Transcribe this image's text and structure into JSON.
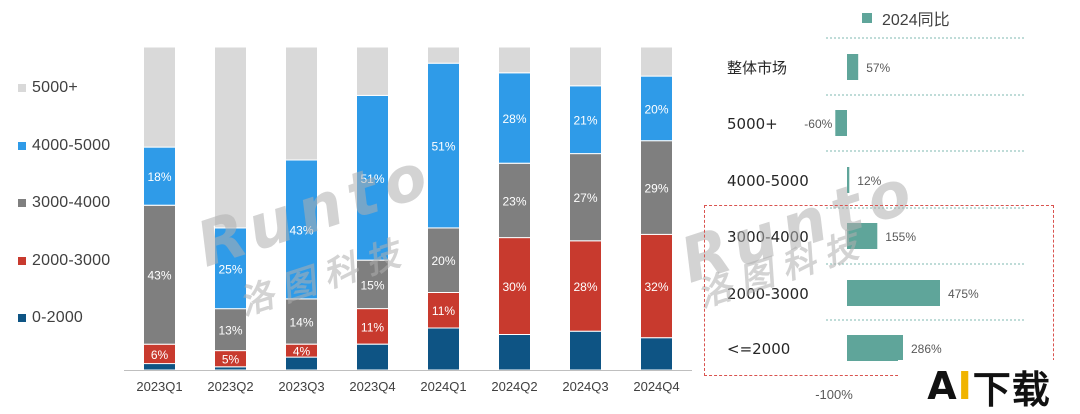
{
  "chart_data": [
    {
      "type": "bar",
      "stacked": true,
      "categories": [
        "2023Q1",
        "2023Q2",
        "2023Q3",
        "2023Q4",
        "2024Q1",
        "2024Q2",
        "2024Q3",
        "2024Q4"
      ],
      "series": [
        {
          "name": "0-2000",
          "color": "#0e5484",
          "values": [
            0.02,
            0.01,
            0.04,
            0.08,
            0.13,
            0.11,
            0.12,
            0.1
          ]
        },
        {
          "name": "2000-3000",
          "color": "#c83a2e",
          "values": [
            0.06,
            0.05,
            0.04,
            0.11,
            0.11,
            0.3,
            0.28,
            0.32
          ]
        },
        {
          "name": "3000-4000",
          "color": "#7f7f7f",
          "values": [
            0.43,
            0.13,
            0.14,
            0.15,
            0.2,
            0.23,
            0.27,
            0.29
          ]
        },
        {
          "name": "4000-5000",
          "color": "#2f9be8",
          "values": [
            0.18,
            0.25,
            0.43,
            0.51,
            0.51,
            0.28,
            0.21,
            0.2
          ]
        },
        {
          "name": "5000+",
          "color": "#d9d9d9",
          "values": [
            0.31,
            0.56,
            0.35,
            0.15,
            0.05,
            0.08,
            0.12,
            0.09
          ]
        }
      ],
      "data_labels": [
        [
          "",
          "6%",
          "43%",
          "18%",
          ""
        ],
        [
          "",
          "5%",
          "13%",
          "25%",
          ""
        ],
        [
          "",
          "4%",
          "14%",
          "43%",
          ""
        ],
        [
          "",
          "11%",
          "15%",
          "51%",
          ""
        ],
        [
          "",
          "11%",
          "20%",
          "51%",
          ""
        ],
        [
          "",
          "30%",
          "23%",
          "28%",
          ""
        ],
        [
          "",
          "28%",
          "27%",
          "21%",
          ""
        ],
        [
          "",
          "32%",
          "29%",
          "20%",
          ""
        ]
      ],
      "legend": [
        "5000+",
        "4000-5000",
        "3000-4000",
        "2000-3000",
        "0-2000"
      ],
      "legend_position": "left",
      "ylim": [
        0,
        1
      ],
      "grid": false
    },
    {
      "type": "bar",
      "orientation": "horizontal",
      "series_name": "2024同比",
      "color": "#5fa59a",
      "categories": [
        "整体市场",
        "5000+",
        "4000-5000",
        "3000-4000",
        "2000-3000",
        "<=2000"
      ],
      "values": [
        57,
        -60,
        12,
        155,
        475,
        286
      ],
      "value_labels": [
        "57%",
        "-60%",
        "12%",
        "155%",
        "475%",
        "286%"
      ],
      "axis_tick_label": "-100%",
      "xlim": [
        -100,
        600
      ],
      "grid": true,
      "grid_style": "dashed"
    }
  ],
  "watermark": {
    "brand": "Runto",
    "cn": "洛图科技"
  },
  "badge": {
    "text_a": "A",
    "text_i": "I",
    "text_rest": "下载"
  }
}
